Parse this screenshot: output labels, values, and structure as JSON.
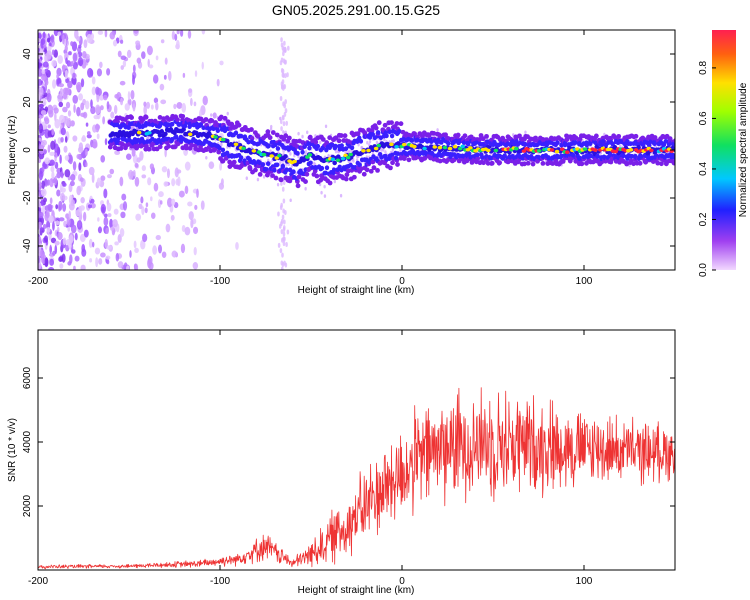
{
  "chart_data": [
    {
      "type": "heatmap",
      "title": "GN05.2025.291.00.15.G25",
      "xlabel": "Height of straight line (km)",
      "ylabel": "Frequency (Hz)",
      "xlim": [
        -200,
        150
      ],
      "ylim": [
        -50,
        50
      ],
      "xticks": [
        -200,
        -100,
        0,
        100
      ],
      "yticks": [
        -40,
        -20,
        0,
        20,
        40
      ],
      "colorbar": {
        "label": "Normalized spectral amplitude",
        "range": [
          0.0,
          0.95
        ],
        "ticks": [
          "0.0",
          "0.2",
          "0.4",
          "0.6",
          "0.8"
        ],
        "colormap": "rainbow: magenta-purple (low) → blue → cyan → green → yellow → red (high)"
      },
      "ridge": {
        "description": "dominant frequency track vs height",
        "x": [
          -150,
          -135,
          -125,
          -115,
          -105,
          -95,
          -85,
          -75,
          -65,
          -58,
          -50,
          -45,
          -40,
          -30,
          -20,
          -10,
          0,
          20,
          50,
          100,
          150
        ],
        "y": [
          7,
          7,
          8,
          7,
          6,
          3,
          0,
          -2,
          -3,
          -6,
          -2,
          -4,
          -4,
          -3,
          0,
          2,
          2,
          1,
          0,
          0,
          0
        ]
      }
    },
    {
      "type": "line",
      "xlabel": "Height of straight line (km)",
      "ylabel": "SNR (10 * v/v)",
      "xlim": [
        -200,
        150
      ],
      "ylim": [
        0,
        7500
      ],
      "xticks": [
        -200,
        -100,
        0,
        100
      ],
      "yticks": [
        2000,
        4000,
        6000
      ],
      "series": [
        {
          "name": "SNR",
          "color": "#ee3333",
          "envelope_x": [
            -200,
            -150,
            -110,
            -90,
            -75,
            -68,
            -60,
            -50,
            -40,
            -30,
            -20,
            -10,
            0,
            10,
            20,
            30,
            40,
            50,
            60,
            70,
            80,
            90,
            100,
            110,
            120,
            130,
            140,
            150
          ],
          "envelope_mid": [
            100,
            120,
            200,
            350,
            750,
            500,
            200,
            500,
            950,
            1400,
            2000,
            2600,
            3000,
            3500,
            3800,
            3900,
            4000,
            4000,
            3950,
            3900,
            3900,
            3850,
            3800,
            3800,
            3750,
            3700,
            3700,
            3700
          ],
          "envelope_amp": [
            60,
            60,
            120,
            200,
            450,
            300,
            150,
            400,
            800,
            1000,
            1200,
            1400,
            1500,
            1600,
            1700,
            1700,
            1700,
            1700,
            1700,
            1600,
            1500,
            1300,
            1200,
            1100,
            1000,
            1000,
            900,
            900
          ]
        }
      ]
    }
  ]
}
